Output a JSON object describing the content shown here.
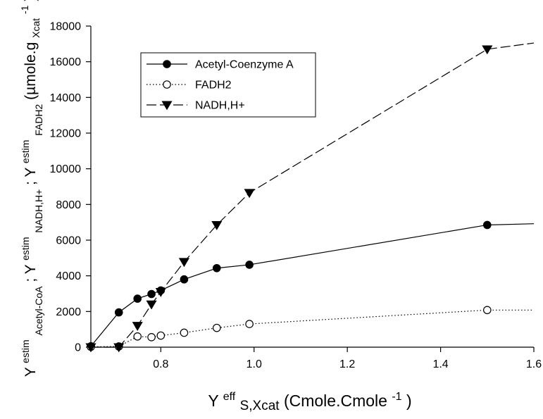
{
  "chart_data": {
    "type": "line",
    "xlim": [
      0.65,
      1.6
    ],
    "ylim": [
      0,
      18000
    ],
    "x_ticks": [
      0.8,
      1.0,
      1.2,
      1.4,
      1.6
    ],
    "x_tick_labels": [
      "0.8",
      "1.0",
      "1.2",
      "1.4",
      "1.6"
    ],
    "y_ticks": [
      0,
      2000,
      4000,
      6000,
      8000,
      10000,
      12000,
      14000,
      16000,
      18000
    ],
    "y_tick_labels": [
      "0",
      "2000",
      "4000",
      "6000",
      "8000",
      "10000",
      "12000",
      "14000",
      "16000",
      "18000"
    ],
    "grid": false,
    "legend_position": "top-left",
    "xlabel": {
      "main": "Y",
      "sup": "eff",
      "sub": "S,Xcat",
      "unit": " (Cmole.Cmole",
      "unit_sup": "-1",
      "close": ")"
    },
    "ylabel": {
      "t1": "Y",
      "t1_sup": "estim",
      "t1_sub": "Acetyl-CoA",
      "sep1": " ; ",
      "t2": "Y",
      "t2_sup": "estim",
      "t2_sub": "NADH,H+",
      "sep2": " ; ",
      "t3": "Y",
      "t3_sup": "estim",
      "t3_sub": "FADH2",
      "unit": " (µmole.g",
      "unit_sub": "Xcat",
      "unit_sup": "-1",
      "close": ")"
    },
    "series": [
      {
        "name": "Acetyl-Coenzyme A",
        "marker": "filled-circle",
        "line_style": "solid",
        "points": [
          {
            "x": 0.65,
            "y": 50
          },
          {
            "x": 0.71,
            "y": 1950
          },
          {
            "x": 0.75,
            "y": 2720
          },
          {
            "x": 0.78,
            "y": 2980
          },
          {
            "x": 0.8,
            "y": 3180
          },
          {
            "x": 0.85,
            "y": 3800
          },
          {
            "x": 0.92,
            "y": 4430
          },
          {
            "x": 0.99,
            "y": 4620
          },
          {
            "x": 1.5,
            "y": 6850
          }
        ],
        "line_end": {
          "x": 1.6,
          "y": 6920
        }
      },
      {
        "name": "FADH2",
        "marker": "open-circle",
        "line_style": "dotted",
        "points": [
          {
            "x": 0.65,
            "y": 20
          },
          {
            "x": 0.71,
            "y": 40
          },
          {
            "x": 0.75,
            "y": 600
          },
          {
            "x": 0.78,
            "y": 560
          },
          {
            "x": 0.8,
            "y": 650
          },
          {
            "x": 0.85,
            "y": 810
          },
          {
            "x": 0.92,
            "y": 1080
          },
          {
            "x": 0.99,
            "y": 1300
          },
          {
            "x": 1.5,
            "y": 2080
          }
        ],
        "line_end": {
          "x": 1.6,
          "y": 2080
        }
      },
      {
        "name": "NADH,H+",
        "marker": "filled-triangle-down",
        "line_style": "dashed",
        "points": [
          {
            "x": 0.65,
            "y": 0
          },
          {
            "x": 0.71,
            "y": 0
          },
          {
            "x": 0.75,
            "y": 1200
          },
          {
            "x": 0.78,
            "y": 2400
          },
          {
            "x": 0.8,
            "y": 3100
          },
          {
            "x": 0.85,
            "y": 4780
          },
          {
            "x": 0.92,
            "y": 6850
          },
          {
            "x": 0.99,
            "y": 8650
          },
          {
            "x": 1.5,
            "y": 16700
          }
        ],
        "line_end": {
          "x": 1.6,
          "y": 17050
        }
      }
    ]
  }
}
